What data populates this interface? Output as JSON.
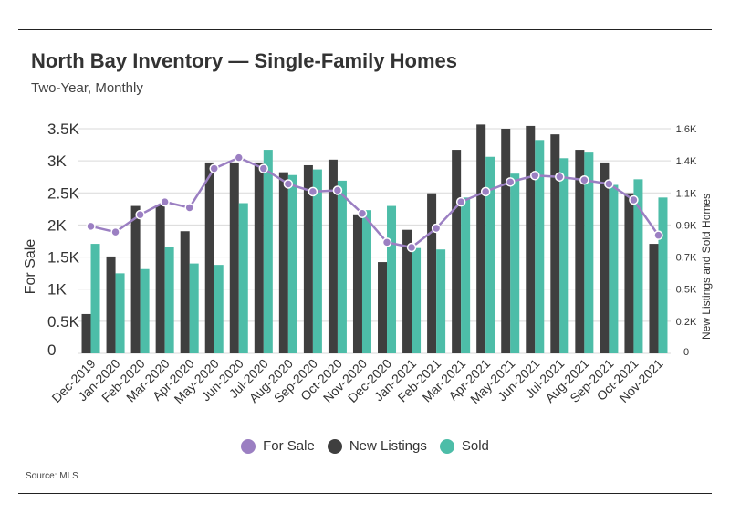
{
  "title": "North Bay Inventory — Single-Family Homes",
  "subtitle": "Two-Year, Monthly",
  "source": "Source:  MLS",
  "colors": {
    "for_sale": "#9b7fc2",
    "new_listings": "#3f3f3f",
    "sold": "#4dbda8",
    "grid": "#d9d9d9"
  },
  "legend": [
    {
      "label": "For Sale",
      "color_key": "for_sale"
    },
    {
      "label": "New Listings",
      "color_key": "new_listings"
    },
    {
      "label": "Sold",
      "color_key": "sold"
    }
  ],
  "chart_data": {
    "type": "bar",
    "title": "North Bay Inventory — Single-Family Homes",
    "subtitle": "Two-Year, Monthly",
    "categories": [
      "Dec-2019",
      "Jan-2020",
      "Feb-2020",
      "Mar-2020",
      "Apr-2020",
      "May-2020",
      "Jun-2020",
      "Jul-2020",
      "Aug-2020",
      "Sep-2020",
      "Oct-2020",
      "Nov-2020",
      "Dec-2020",
      "Jan-2021",
      "Feb-2021",
      "Mar-2021",
      "Apr-2021",
      "May-2021",
      "Jun-2021",
      "Jul-2021",
      "Aug-2021",
      "Sep-2021",
      "Oct-2021",
      "Nov-2021"
    ],
    "ylabel": "For Sale",
    "y2label": "New Listings and Sold Homes",
    "ylim": [
      0,
      3500
    ],
    "y2lim": [
      0,
      1600
    ],
    "yticks": [
      "0",
      "0.5K",
      "1K",
      "1.5K",
      "2K",
      "2.5K",
      "3K",
      "3.5K"
    ],
    "y2ticks": [
      "0",
      "0.2K",
      "0.5K",
      "0.7K",
      "0.9K",
      "1.1K",
      "1.4K",
      "1.6K"
    ],
    "legend_position": "bottom",
    "grid": true,
    "series": [
      {
        "name": "For Sale",
        "type": "line",
        "axis": "left",
        "values": [
          1980,
          1890,
          2160,
          2360,
          2270,
          2880,
          3050,
          2880,
          2640,
          2520,
          2540,
          2180,
          1730,
          1650,
          1950,
          2360,
          2520,
          2670,
          2770,
          2750,
          2700,
          2640,
          2390,
          1840
        ]
      },
      {
        "name": "New Listings",
        "type": "bar",
        "axis": "right",
        "values": [
          280,
          690,
          1050,
          1060,
          870,
          1360,
          1360,
          1360,
          1290,
          1340,
          1380,
          990,
          650,
          880,
          1140,
          1450,
          1630,
          1600,
          1620,
          1560,
          1450,
          1360,
          1140,
          780
        ]
      },
      {
        "name": "Sold",
        "type": "bar",
        "axis": "right",
        "values": [
          780,
          570,
          600,
          760,
          640,
          630,
          1070,
          1450,
          1270,
          1310,
          1230,
          1020,
          1050,
          750,
          740,
          1110,
          1400,
          1280,
          1520,
          1390,
          1430,
          1200,
          1240,
          1110
        ]
      }
    ]
  }
}
